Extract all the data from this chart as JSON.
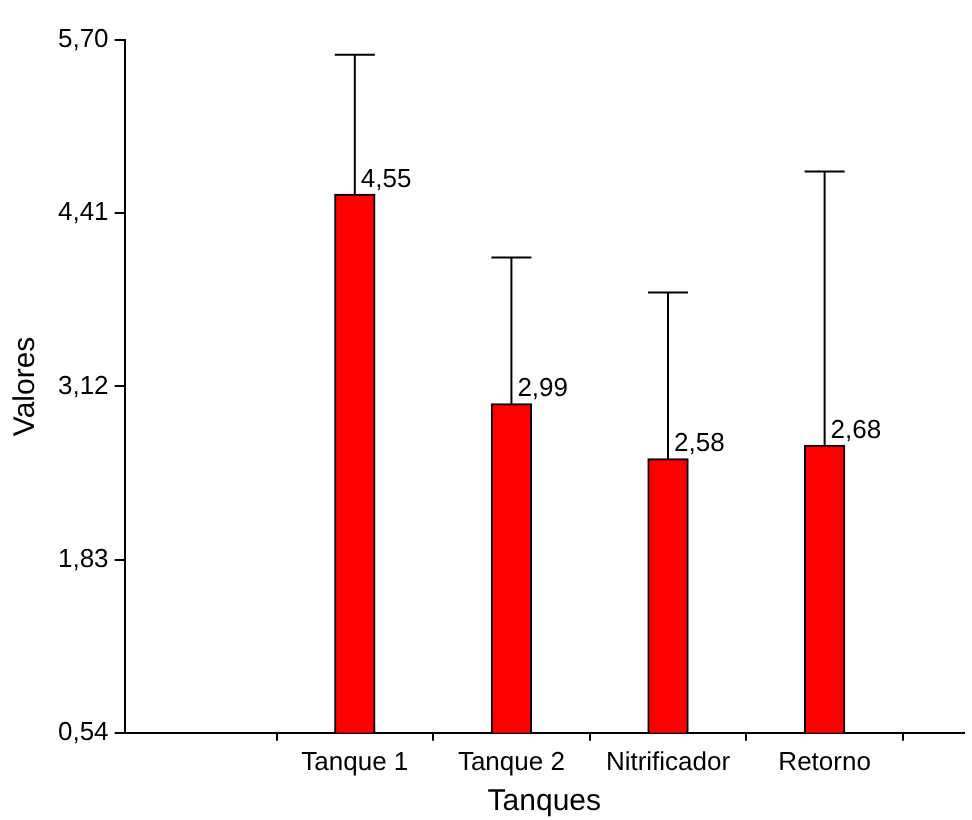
{
  "chart_data": {
    "type": "bar",
    "xlabel": "Tanques",
    "ylabel": "Valores",
    "categories": [
      "Tanque 1",
      "Tanque 2",
      "Nitrificador",
      "Retorno"
    ],
    "values": [
      4.55,
      2.99,
      2.58,
      2.68
    ],
    "value_labels": [
      "4,55",
      "2,99",
      "2,58",
      "2,68"
    ],
    "errors": [
      [
        4.55,
        5.59
      ],
      [
        2.99,
        4.08
      ],
      [
        2.58,
        3.82
      ],
      [
        2.68,
        4.72
      ]
    ],
    "color": "#ff0000",
    "ylim": [
      0.54,
      5.7
    ],
    "yticks": [
      {
        "value": 0.54,
        "label": "0,54"
      },
      {
        "value": 1.83,
        "label": "1,83"
      },
      {
        "value": 3.12,
        "label": "3,12"
      },
      {
        "value": 4.41,
        "label": "4,41"
      },
      {
        "value": 5.7,
        "label": "5,70"
      }
    ],
    "grid": false,
    "legend": false
  }
}
